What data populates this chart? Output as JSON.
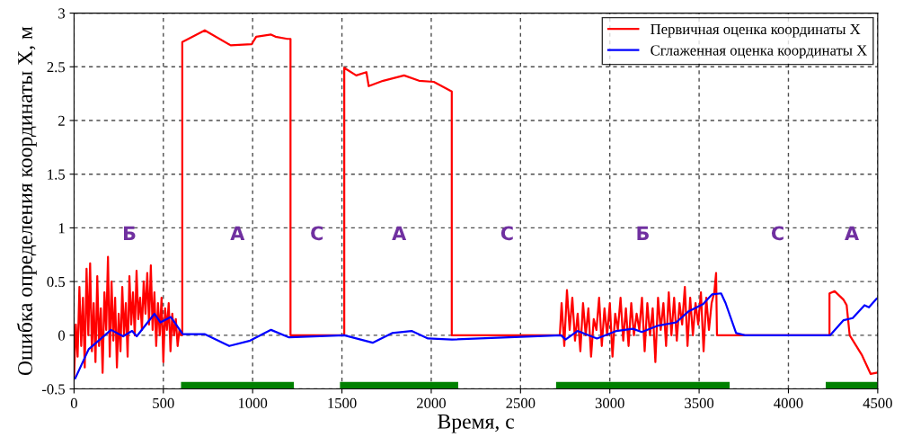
{
  "chart_data": {
    "type": "line",
    "xlabel": "Время, с",
    "ylabel": "Ошибка определения координаты X, м",
    "xlim": [
      0,
      4500
    ],
    "ylim": [
      -0.5,
      3
    ],
    "xticks": [
      0,
      500,
      1000,
      1500,
      2000,
      2500,
      3000,
      3500,
      4000,
      4500
    ],
    "yticks": [
      -0.5,
      0,
      0.5,
      1,
      1.5,
      2,
      2.5,
      3
    ],
    "grid": true,
    "legend": "top right",
    "marker": "none",
    "line_style": "solid",
    "series": [
      {
        "name": "Первичная оценка координаты X",
        "color": "#ff0000",
        "x": [
          0,
          10,
          20,
          30,
          40,
          50,
          60,
          70,
          80,
          90,
          100,
          110,
          120,
          130,
          140,
          150,
          160,
          170,
          180,
          190,
          200,
          210,
          220,
          230,
          240,
          250,
          260,
          270,
          280,
          290,
          300,
          310,
          320,
          330,
          340,
          350,
          360,
          370,
          380,
          390,
          400,
          410,
          420,
          430,
          440,
          450,
          460,
          470,
          480,
          490,
          500,
          510,
          520,
          530,
          540,
          550,
          560,
          570,
          580,
          590,
          600,
          606,
          606,
          732,
          877,
          994,
          1020,
          1103,
          1128,
          1195,
          1212,
          1212,
          1513,
          1513,
          1580,
          1637,
          1650,
          1731,
          1848,
          1932,
          2014,
          2115,
          2115,
          2720,
          2730,
          2745,
          2760,
          2775,
          2790,
          2805,
          2820,
          2835,
          2850,
          2865,
          2880,
          2895,
          2910,
          2925,
          2940,
          2955,
          2970,
          2985,
          3000,
          3015,
          3030,
          3045,
          3060,
          3075,
          3090,
          3105,
          3120,
          3135,
          3150,
          3165,
          3180,
          3195,
          3210,
          3225,
          3240,
          3255,
          3270,
          3285,
          3300,
          3315,
          3330,
          3345,
          3360,
          3375,
          3390,
          3405,
          3420,
          3435,
          3450,
          3465,
          3480,
          3495,
          3510,
          3525,
          3540,
          3555,
          3570,
          3585,
          3595,
          3600,
          3600,
          4230,
          4230,
          4259,
          4309,
          4326,
          4343,
          4410,
          4460,
          4493
        ],
        "values": [
          -0.4,
          0.1,
          -0.2,
          0.45,
          -0.1,
          0.35,
          -0.3,
          0.62,
          0.0,
          0.67,
          -0.15,
          0.3,
          -0.25,
          0.55,
          -0.1,
          0.25,
          -0.35,
          0.4,
          0.05,
          0.73,
          -0.2,
          0.5,
          -0.05,
          0.35,
          -0.3,
          0.2,
          -0.15,
          0.45,
          0.0,
          0.3,
          -0.2,
          0.55,
          0.1,
          0.4,
          0.0,
          0.6,
          0.15,
          0.35,
          0.05,
          0.5,
          0.2,
          0.58,
          0.1,
          0.65,
          0.05,
          0.4,
          -0.1,
          0.3,
          0.0,
          0.35,
          -0.25,
          0.25,
          0.05,
          0.3,
          -0.15,
          0.2,
          0.0,
          0.15,
          -0.1,
          0.05,
          0.0,
          0.0,
          2.73,
          2.84,
          2.7,
          2.71,
          2.78,
          2.8,
          2.78,
          2.76,
          2.76,
          0.0,
          0.0,
          2.49,
          2.42,
          2.45,
          2.32,
          2.37,
          2.42,
          2.37,
          2.36,
          2.27,
          0.0,
          0.0,
          0.3,
          -0.1,
          0.42,
          0.05,
          0.35,
          -0.05,
          0.2,
          -0.15,
          0.3,
          0.0,
          0.25,
          -0.2,
          0.15,
          0.05,
          0.35,
          -0.1,
          0.25,
          0.0,
          0.3,
          -0.2,
          0.2,
          0.05,
          0.35,
          -0.05,
          0.25,
          -0.1,
          0.3,
          0.0,
          0.2,
          0.05,
          0.35,
          -0.15,
          0.3,
          0.0,
          0.25,
          -0.25,
          0.35,
          0.05,
          0.3,
          -0.1,
          0.4,
          0.0,
          0.35,
          -0.05,
          0.3,
          0.1,
          0.45,
          -0.1,
          0.35,
          0.0,
          0.3,
          0.1,
          0.4,
          -0.15,
          0.35,
          0.05,
          0.3,
          0.4,
          0.58,
          0.0,
          0.0,
          0.0,
          0.39,
          0.41,
          0.33,
          0.28,
          0.0,
          -0.18,
          -0.36,
          -0.35
        ]
      },
      {
        "name": "Сглаженная оценка координаты X",
        "color": "#0000ff",
        "x": [
          7,
          82,
          207,
          275,
          325,
          351,
          450,
          484,
          542,
          609,
          733,
          869,
          986,
          1103,
          1204,
          1513,
          1672,
          1781,
          1890,
          1982,
          2116,
          2727,
          2752,
          2819,
          2928,
          3037,
          3129,
          3179,
          3271,
          3372,
          3439,
          3522,
          3572,
          3623,
          3648,
          3707,
          3757,
          4234,
          4309,
          4360,
          4426,
          4451,
          4493
        ],
        "values": [
          -0.4,
          -0.13,
          0.05,
          -0.01,
          0.04,
          -0.01,
          0.2,
          0.12,
          0.17,
          0.01,
          0.01,
          -0.1,
          -0.05,
          0.05,
          -0.02,
          0.0,
          -0.07,
          0.02,
          0.04,
          -0.03,
          -0.04,
          0.0,
          -0.04,
          0.04,
          -0.03,
          0.04,
          0.06,
          0.03,
          0.09,
          0.12,
          0.22,
          0.29,
          0.38,
          0.39,
          0.3,
          0.02,
          0.0,
          0.0,
          0.14,
          0.16,
          0.28,
          0.26,
          0.34
        ]
      },
      {
        "color": "#008000",
        "x": [
          620,
          1210,
          1360,
          1510,
          2130,
          2420,
          2720,
          3650,
          3940,
          4230,
          4480
        ],
        "values": [
          -0.47,
          -0.47,
          null,
          -0.47,
          -0.47,
          null,
          -0.47,
          -0.47,
          null,
          -0.47,
          -0.47
        ]
      }
    ],
    "annotations": [
      "Б",
      "А",
      "С",
      "А",
      "С",
      "Б",
      "С",
      "А"
    ]
  }
}
